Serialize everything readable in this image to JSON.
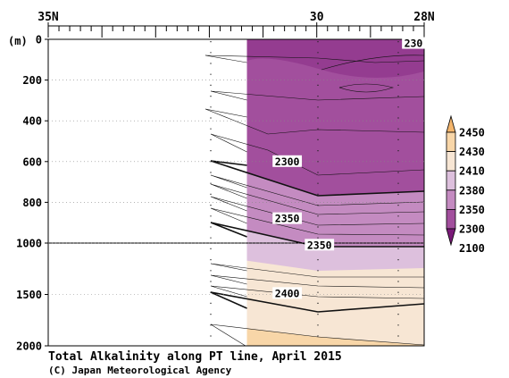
{
  "chart_data": {
    "type": "heatmap",
    "title": "Total Alkalinity along PT line, April 2015",
    "credit": "(C) Japan Meteorological Agency",
    "ylabel": "(m)",
    "x_ticks": [
      {
        "lat": 35,
        "label": "35N"
      },
      {
        "lat": 30,
        "label": "30"
      },
      {
        "lat": 28,
        "label": "28N"
      }
    ],
    "xlim": [
      35,
      28
    ],
    "y_ticks_upper": [
      0,
      200,
      400,
      600,
      800,
      1000
    ],
    "y_ticks_lower": [
      1500,
      2000
    ],
    "ylim": [
      0,
      2000
    ],
    "y_break": 1000,
    "data_start_lat": 31.3,
    "colorbar": {
      "levels": [
        2100,
        2300,
        2350,
        2380,
        2410,
        2430,
        2450
      ],
      "labels": [
        "2450",
        "2430",
        "2410",
        "2380",
        "2350",
        "2300",
        "2100"
      ],
      "colors": [
        "#7a1a78",
        "#a24f9d",
        "#c48bc1",
        "#ddc0dd",
        "#f7e6d4",
        "#f8d6a8",
        "#f3b56c"
      ]
    },
    "contour_labels": [
      {
        "text": "2300",
        "lat": 30.55,
        "depth": 600
      },
      {
        "text": "2350",
        "lat": 30.55,
        "depth": 880
      },
      {
        "text": "2350",
        "lat": 29.95,
        "depth": 1020
      },
      {
        "text": "2400",
        "lat": 30.55,
        "depth": 1490
      },
      {
        "text": "230",
        "lat": 28.2,
        "depth": 20
      }
    ]
  }
}
